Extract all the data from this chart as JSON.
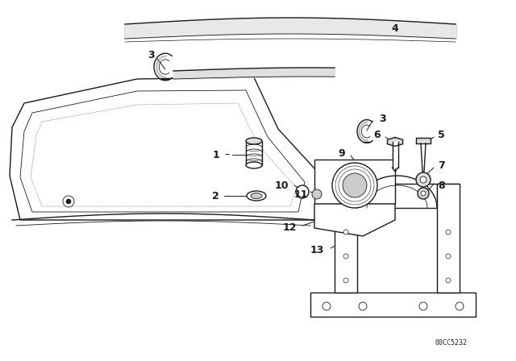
{
  "bg_color": "#ffffff",
  "line_color": "#1a1a1a",
  "diagram_code": "00CC5232",
  "label_fontsize": 9,
  "small_fontsize": 7
}
